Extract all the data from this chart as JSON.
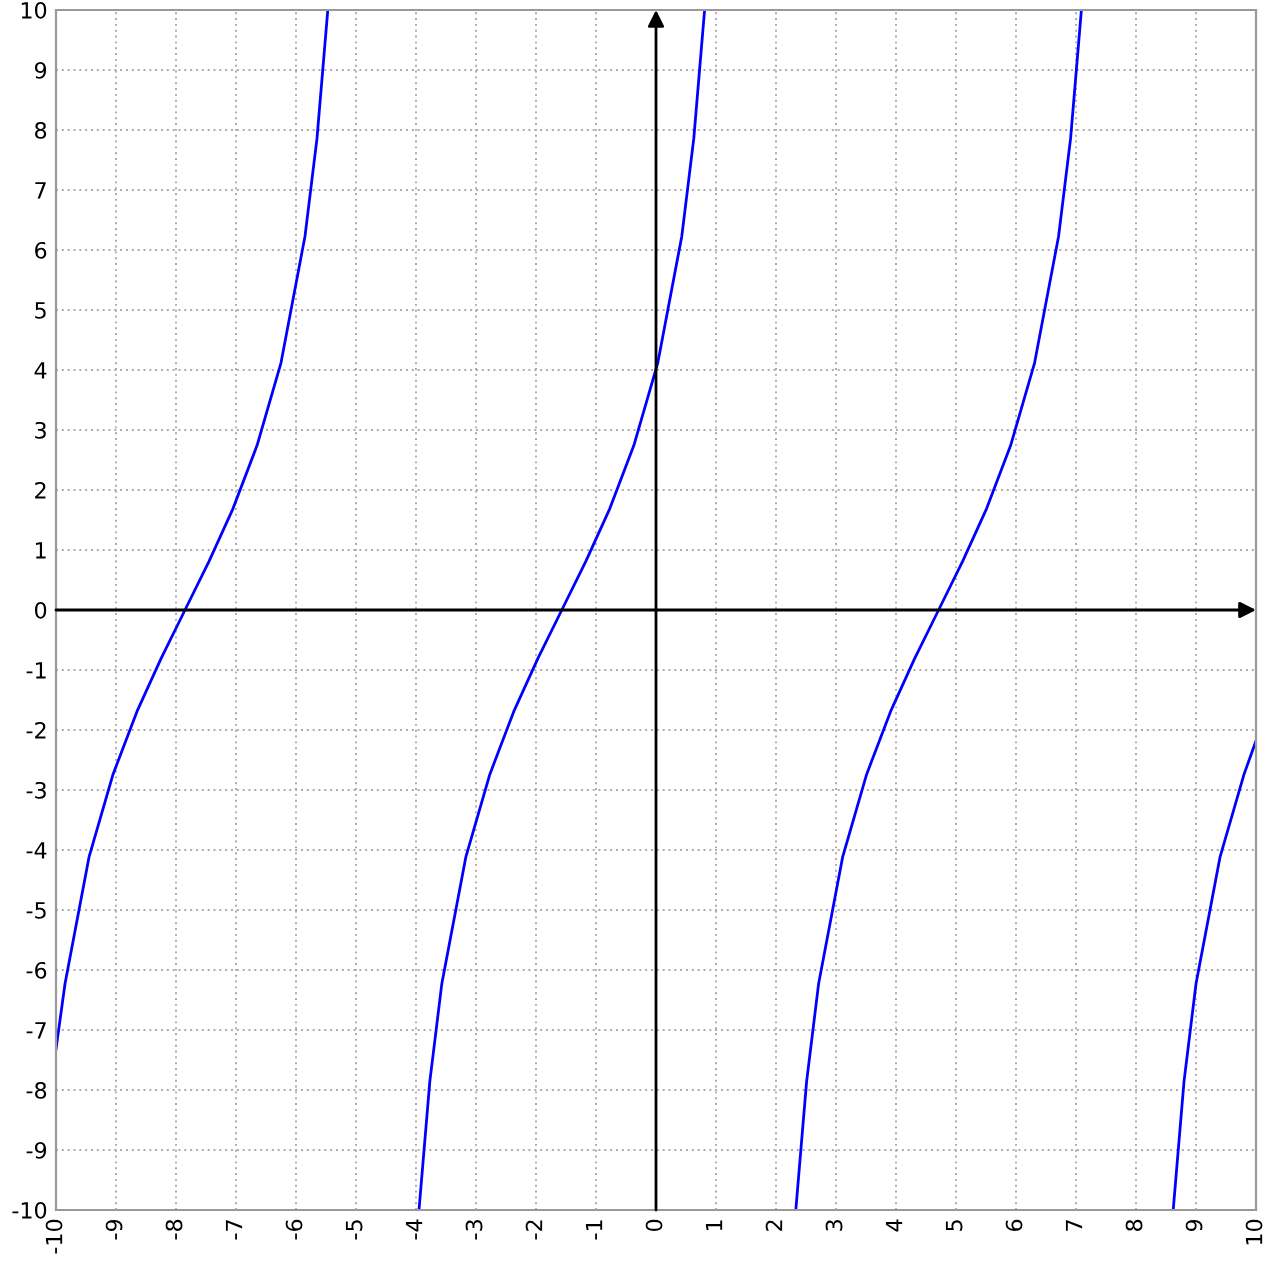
{
  "chart_data": {
    "type": "line",
    "xlim": [
      -10,
      10
    ],
    "ylim": [
      -10,
      10
    ],
    "xticks": [
      -10,
      -9,
      -8,
      -7,
      -6,
      -5,
      -4,
      -3,
      -2,
      -1,
      0,
      1,
      2,
      3,
      4,
      5,
      6,
      7,
      8,
      9,
      10
    ],
    "yticks": [
      -10,
      -9,
      -8,
      -7,
      -6,
      -5,
      -4,
      -3,
      -2,
      -1,
      0,
      1,
      2,
      3,
      4,
      5,
      6,
      7,
      8,
      9,
      10
    ],
    "grid": true,
    "marker": "none",
    "line_style": "solid",
    "series": [
      {
        "color": "#0000ff",
        "x": [
          -10,
          -9.85,
          -9.45,
          -9.05,
          -8.65,
          -8.25,
          -7.85,
          -7.45,
          -7.05,
          -6.65,
          -6.25,
          -5.85,
          -5.65,
          -5.47,
          -5.0,
          -3.95,
          -3.77,
          -3.57,
          -3.17,
          -2.77,
          -2.37,
          -1.97,
          -1.57,
          -1.17,
          -0.77,
          -0.37,
          0.03,
          0.43,
          0.63,
          0.81,
          1.5,
          2.33,
          2.51,
          2.71,
          3.11,
          3.51,
          3.91,
          4.31,
          4.71,
          5.11,
          5.51,
          5.91,
          6.31,
          6.71,
          6.91,
          7.09,
          8.0,
          8.62,
          8.8,
          9.0,
          9.4,
          9.8,
          10
        ],
        "values": [
          -7.32,
          -6.23,
          -4.12,
          -2.74,
          -1.69,
          -0.81,
          0,
          0.81,
          1.69,
          2.74,
          4.12,
          6.23,
          7.86,
          10,
          null,
          -10,
          -7.86,
          -6.23,
          -4.12,
          -2.74,
          -1.69,
          -0.81,
          0,
          0.81,
          1.69,
          2.74,
          4.12,
          6.23,
          7.86,
          10,
          null,
          -10,
          -7.86,
          -6.23,
          -4.12,
          -2.74,
          -1.69,
          -0.81,
          0,
          0.81,
          1.69,
          2.74,
          4.12,
          6.23,
          7.86,
          10,
          null,
          -10,
          -7.86,
          -6.23,
          -4.12,
          -2.74,
          -2.18
        ]
      }
    ]
  }
}
